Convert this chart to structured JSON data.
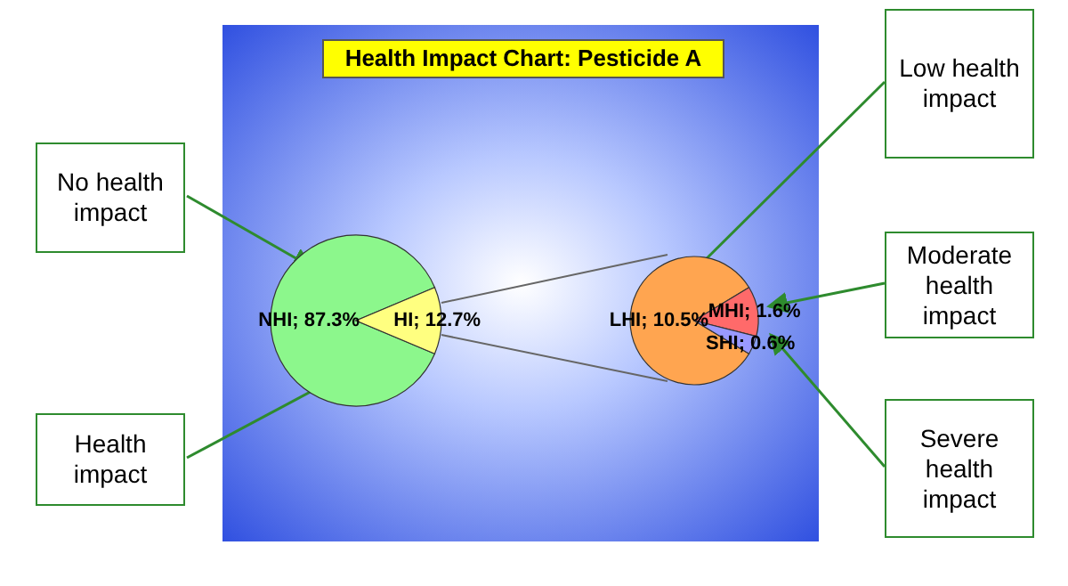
{
  "chart_data": [
    {
      "type": "pie",
      "title": "Health Impact Chart: Pesticide A",
      "categories": [
        "NHI",
        "HI"
      ],
      "values": [
        87.3,
        12.7
      ],
      "colors": [
        "#8cf78c",
        "#ffff80"
      ],
      "value_labels": [
        "87.3%",
        "12.7%"
      ],
      "annotations": [
        "No health impact",
        "Health impact"
      ]
    },
    {
      "type": "pie",
      "categories": [
        "LHI",
        "MHI",
        "SHI"
      ],
      "values": [
        10.5,
        1.6,
        0.6
      ],
      "colors": [
        "#ffa550",
        "#ff6a6a",
        "#9999ff"
      ],
      "value_labels": [
        "10.5%",
        "1.6%",
        "0.6%"
      ],
      "annotations": [
        "Low health impact",
        "Moderate health impact",
        "Severe health impact"
      ]
    }
  ]
}
